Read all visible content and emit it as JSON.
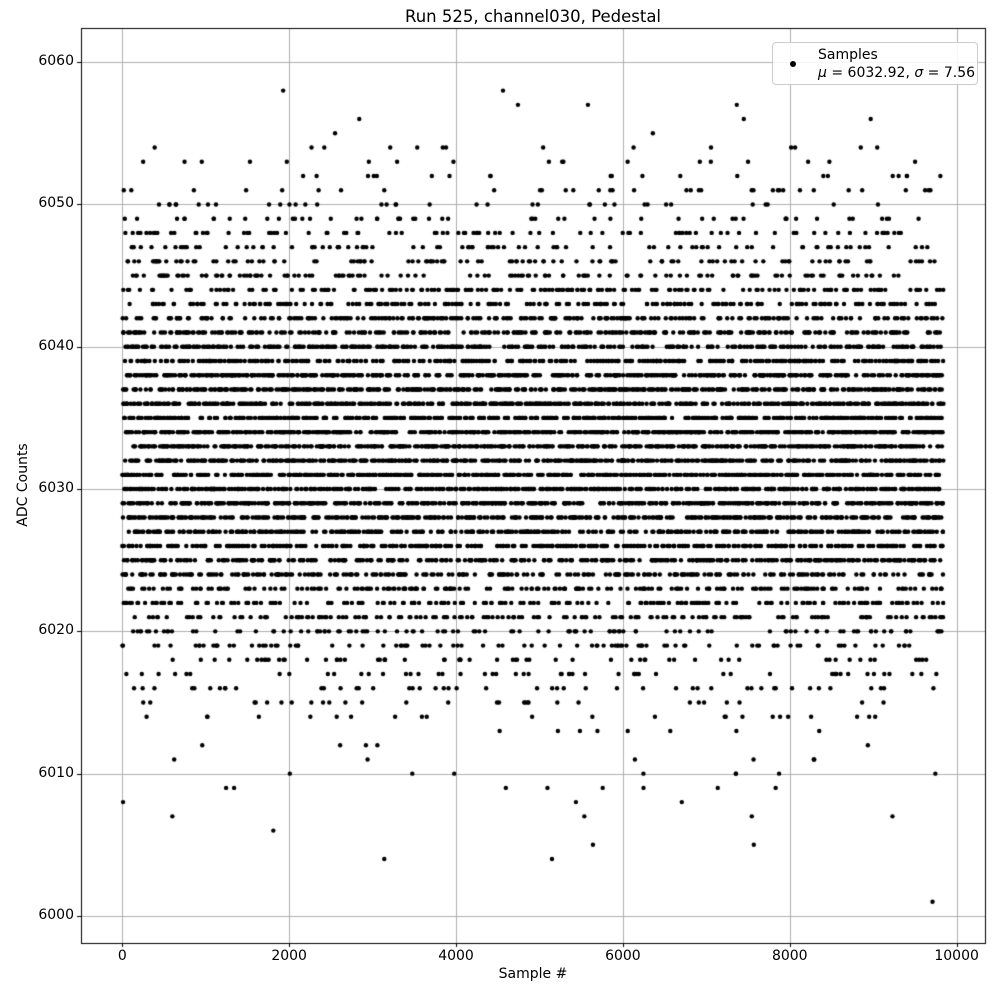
{
  "chart_data": {
    "type": "scatter",
    "title": "Run 525, channel030, Pedestal",
    "xlabel": "Sample #",
    "ylabel": "ADC Counts",
    "xlim": [
      -495,
      10340
    ],
    "ylim": [
      5998.1,
      6062.4
    ],
    "x_ticks": [
      0,
      2000,
      4000,
      6000,
      8000,
      10000
    ],
    "y_ticks": [
      6000,
      6010,
      6020,
      6030,
      6040,
      6050,
      6060
    ],
    "grid": true,
    "grid_color": "#b0b0b0",
    "spine_color": "#000000",
    "background_color": "#ffffff",
    "marker": {
      "shape": "dot",
      "color": "#000000",
      "radius_px": 2.2
    },
    "legend": {
      "position": "upper right",
      "label": "Samples",
      "mu_symbol": "μ",
      "mu_rest": " = 6032.92, ",
      "sigma_symbol": "σ",
      "sigma_rest": " = 7.56",
      "stats_text": "μ = 6032.92, σ = 7.56"
    },
    "series": [
      {
        "name": "Samples",
        "n_samples": 9843,
        "x_start": 0,
        "x_step": 1,
        "distribution": "gaussian_rounded_to_integer",
        "mu": 6032.92,
        "sigma": 7.56,
        "y_clip": [
          6005,
          6054
        ],
        "seed": 42
      }
    ],
    "outlier_points": [
      [
        600,
        6007
      ],
      [
        1340,
        6009
      ],
      [
        1810,
        6006
      ],
      [
        3140,
        6004
      ],
      [
        5150,
        6004
      ],
      [
        5437,
        6008
      ],
      [
        5641,
        6005
      ],
      [
        5758,
        6009
      ],
      [
        7137,
        6009
      ],
      [
        7545,
        6007
      ],
      [
        7569,
        6005
      ],
      [
        9231,
        6007
      ],
      [
        9711,
        6001
      ],
      [
        1928,
        6058
      ],
      [
        4563,
        6058
      ],
      [
        4742,
        6057
      ],
      [
        5581,
        6057
      ],
      [
        7365,
        6057
      ],
      [
        2840,
        6056
      ],
      [
        7449,
        6056
      ],
      [
        8970,
        6056
      ],
      [
        2550,
        6055
      ],
      [
        6359,
        6055
      ]
    ]
  }
}
